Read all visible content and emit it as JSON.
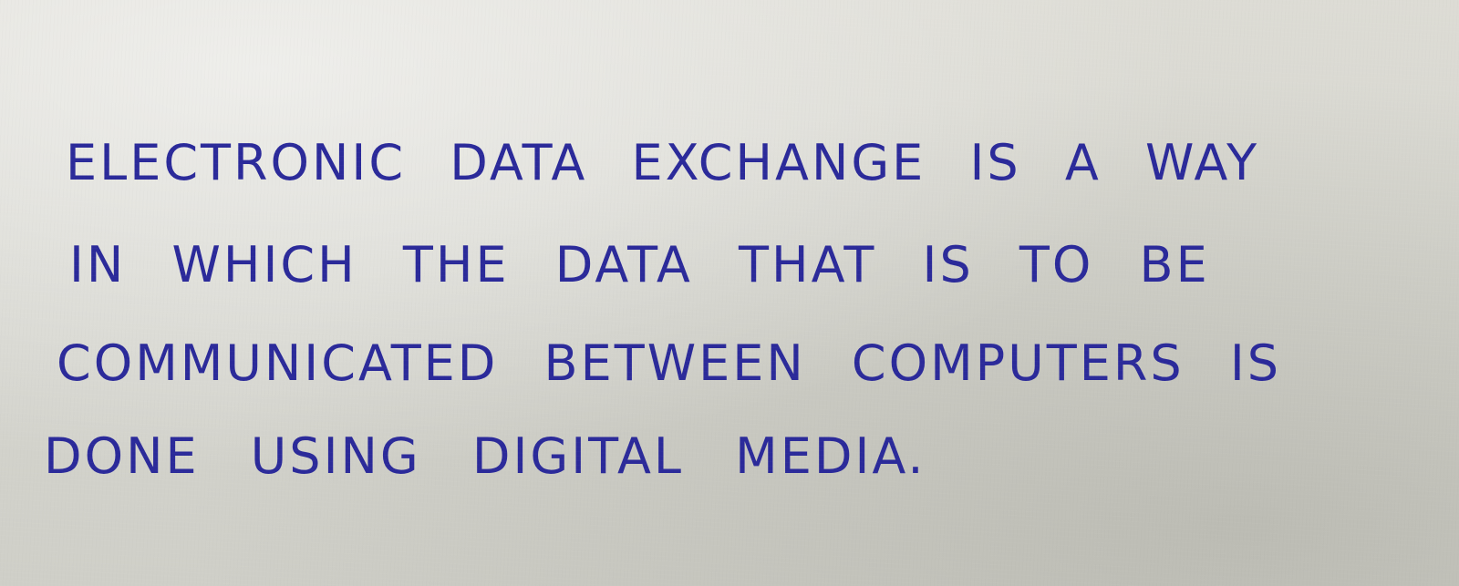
{
  "document": {
    "lines": [
      "ELECTRONIC DATA EXCHANGE IS A WAY",
      "IN WHICH THE DATA THAT IS TO BE",
      "COMMUNICATED BETWEEN COMPUTERS IS",
      "DONE USING DIGITAL MEDIA."
    ]
  },
  "colors": {
    "ink": "#2b2a9a",
    "paper": "#d8d8d2"
  }
}
